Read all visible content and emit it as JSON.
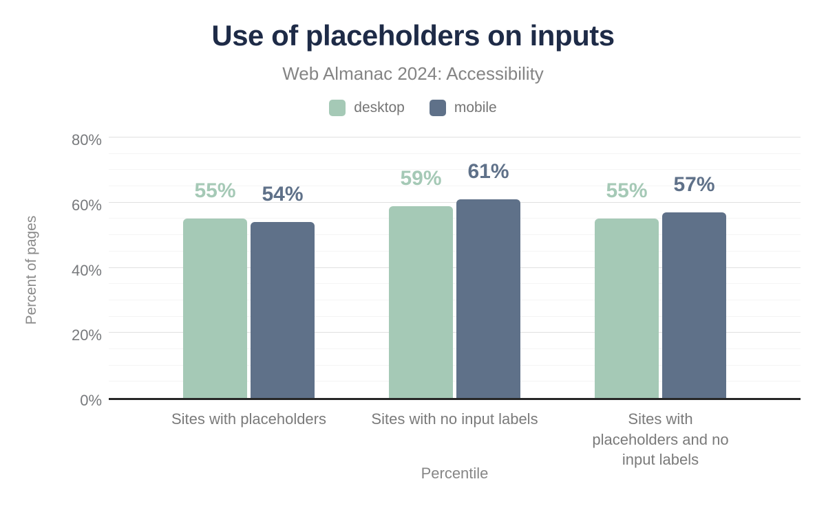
{
  "chart_data": {
    "type": "bar",
    "title": "Use of placeholders on inputs",
    "subtitle": "Web Almanac 2024: Accessibility",
    "categories": [
      "Sites with placeholders",
      "Sites with no input labels",
      "Sites with placeholders and no input labels"
    ],
    "series": [
      {
        "name": "desktop",
        "color": "#a5c9b6",
        "values": [
          55,
          59,
          55
        ]
      },
      {
        "name": "mobile",
        "color": "#5f7189",
        "values": [
          54,
          61,
          57
        ]
      }
    ],
    "value_suffix": "%",
    "xlabel": "Percentile",
    "ylabel": "Percent of pages",
    "ylim": [
      0,
      80
    ],
    "yticks": [
      0,
      20,
      40,
      60,
      80
    ],
    "ytick_suffix": "%",
    "grid_minor_step": 5,
    "grid": true,
    "legend_position": "top"
  },
  "colors": {
    "title": "#1e2b47",
    "subtitle": "#848484",
    "axis_text": "#77797c",
    "axis_line": "#262626",
    "grid_minor": "#f4f4f4",
    "grid_major": "#e0e0e0",
    "background": "#ffffff"
  }
}
